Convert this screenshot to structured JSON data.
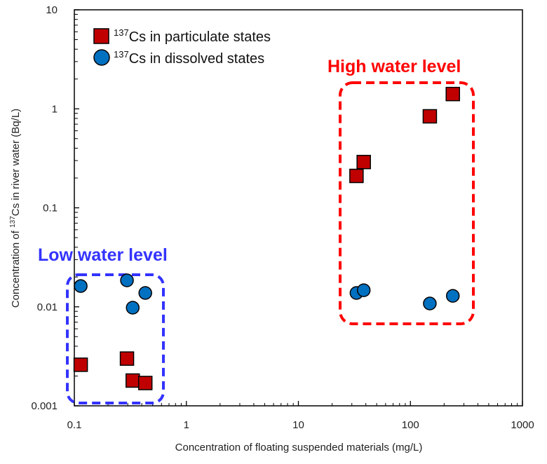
{
  "chart_data": {
    "type": "scatter",
    "xlabel": "Concentration of floating suspended materials (mg/L)",
    "ylabel_pre": "Concentration of ",
    "ylabel_sup": "137",
    "ylabel_post": "Cs in river water (Bq/L)",
    "xscale": "log",
    "yscale": "log",
    "xlim": [
      0.1,
      1000
    ],
    "ylim": [
      0.001,
      10
    ],
    "xticks": [
      "0.1",
      "1",
      "10",
      "100",
      "1000"
    ],
    "yticks": [
      "0.001",
      "0.01",
      "0.1",
      "1",
      "10"
    ],
    "grid": false,
    "legend_position": "top-left",
    "series": [
      {
        "name_sup": "137",
        "name": "Cs in particulate states",
        "marker": "square",
        "color": "#c00000",
        "x": [
          0.114,
          0.295,
          0.332,
          0.43,
          33,
          38.3,
          149,
          239
        ],
        "y": [
          0.0026,
          0.003,
          0.0018,
          0.0017,
          0.21,
          0.29,
          0.84,
          1.41
        ]
      },
      {
        "name_sup": "137",
        "name": "Cs in dissolved states",
        "marker": "circle",
        "color": "#0070c0",
        "x": [
          0.114,
          0.295,
          0.332,
          0.43,
          33,
          38.3,
          149,
          239
        ],
        "y": [
          0.0162,
          0.0185,
          0.0098,
          0.0138,
          0.0138,
          0.0147,
          0.0108,
          0.0129
        ]
      }
    ],
    "annotations": [
      {
        "text": "Low water level",
        "color": "#3333ff"
      },
      {
        "text": "High water level",
        "color": "#ff0000"
      }
    ]
  }
}
